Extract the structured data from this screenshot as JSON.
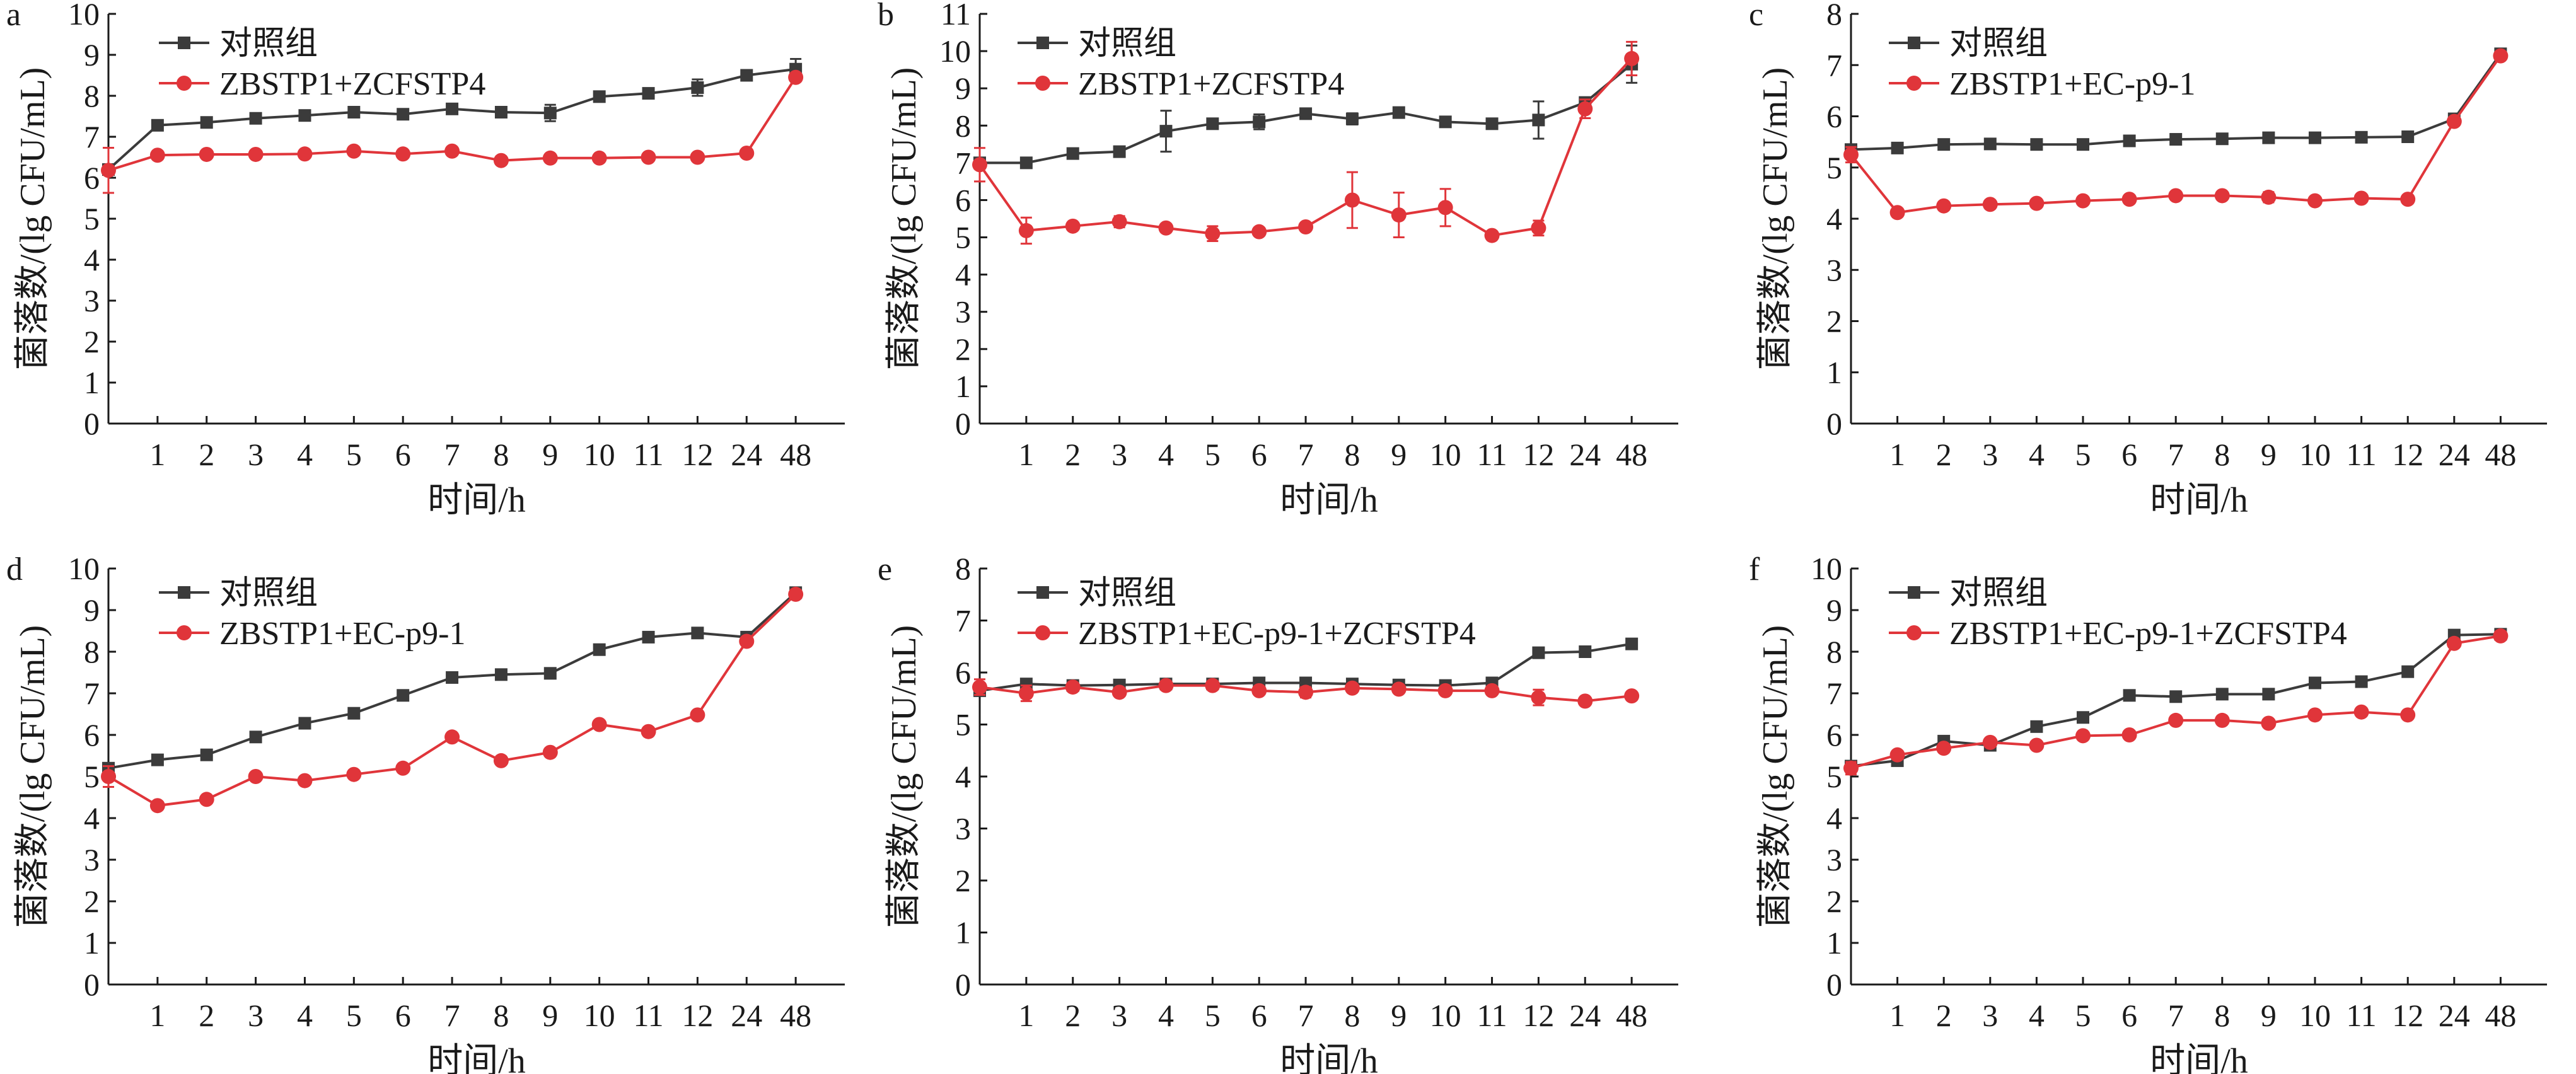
{
  "figure": {
    "x_axis_label": "时间/h",
    "y_axis_label": "菌落数/(lg CFU/mL)",
    "colors": {
      "control": "#3b3b3b",
      "treatment": "#e0353a",
      "axis": "#1a1a1a"
    },
    "control_legend": "对照组"
  },
  "chart_data": [
    {
      "panel": "a",
      "type": "line",
      "categories": [
        "0",
        "1",
        "2",
        "3",
        "4",
        "5",
        "6",
        "7",
        "8",
        "9",
        "10",
        "11",
        "12",
        "24",
        "48"
      ],
      "ylim": [
        0,
        10
      ],
      "yticks": [
        0,
        1,
        2,
        3,
        4,
        5,
        6,
        7,
        8,
        9,
        10
      ],
      "xlabel": "时间/h",
      "ylabel": "菌落数/(lg CFU/mL)",
      "series": [
        {
          "name": "对照组",
          "marker": "square",
          "values": [
            6.2,
            7.28,
            7.35,
            7.45,
            7.52,
            7.6,
            7.55,
            7.68,
            7.6,
            7.58,
            7.98,
            8.06,
            8.2,
            8.5,
            8.65
          ],
          "errors": [
            0.05,
            0.05,
            0.05,
            0.05,
            0.05,
            0.05,
            0.05,
            0.05,
            0.05,
            0.2,
            0.05,
            0.05,
            0.2,
            0.05,
            0.25
          ]
        },
        {
          "name": "ZBSTP1+ZCFSTP4",
          "marker": "circle",
          "values": [
            6.18,
            6.55,
            6.57,
            6.57,
            6.58,
            6.65,
            6.58,
            6.65,
            6.42,
            6.48,
            6.48,
            6.5,
            6.5,
            6.6,
            8.45
          ],
          "errors": [
            0.55,
            0.05,
            0.05,
            0.05,
            0.05,
            0.05,
            0.05,
            0.05,
            0.05,
            0.05,
            0.05,
            0.05,
            0.05,
            0.05,
            0.1
          ]
        }
      ]
    },
    {
      "panel": "b",
      "type": "line",
      "categories": [
        "0",
        "1",
        "2",
        "3",
        "4",
        "5",
        "6",
        "7",
        "8",
        "9",
        "10",
        "11",
        "12",
        "24",
        "48"
      ],
      "ylim": [
        0,
        11
      ],
      "yticks": [
        0,
        1,
        2,
        3,
        4,
        5,
        6,
        7,
        8,
        9,
        10,
        11
      ],
      "xlabel": "时间/h",
      "ylabel": "菌落数/(lg CFU/mL)",
      "series": [
        {
          "name": "对照组",
          "marker": "square",
          "values": [
            7.0,
            7.0,
            7.25,
            7.3,
            7.85,
            8.05,
            8.1,
            8.32,
            8.18,
            8.35,
            8.1,
            8.05,
            8.15,
            8.62,
            9.65
          ],
          "errors": [
            0.05,
            0.05,
            0.05,
            0.1,
            0.55,
            0.1,
            0.2,
            0.05,
            0.15,
            0.05,
            0.05,
            0.05,
            0.5,
            0.05,
            0.5
          ]
        },
        {
          "name": "ZBSTP1+ZCFSTP4",
          "marker": "circle",
          "values": [
            6.95,
            5.18,
            5.3,
            5.42,
            5.25,
            5.1,
            5.15,
            5.28,
            6.0,
            5.6,
            5.8,
            5.05,
            5.25,
            8.45,
            9.8
          ],
          "errors": [
            0.45,
            0.35,
            0.05,
            0.15,
            0.05,
            0.2,
            0.1,
            0.05,
            0.75,
            0.6,
            0.5,
            0.05,
            0.2,
            0.25,
            0.45
          ]
        }
      ]
    },
    {
      "panel": "c",
      "type": "line",
      "categories": [
        "0",
        "1",
        "2",
        "3",
        "4",
        "5",
        "6",
        "7",
        "8",
        "9",
        "10",
        "11",
        "12",
        "24",
        "48"
      ],
      "ylim": [
        0,
        8
      ],
      "yticks": [
        0,
        1,
        2,
        3,
        4,
        5,
        6,
        7,
        8
      ],
      "xlabel": "时间/h",
      "ylabel": "菌落数/(lg CFU/mL)",
      "series": [
        {
          "name": "对照组",
          "marker": "square",
          "values": [
            5.35,
            5.38,
            5.45,
            5.46,
            5.45,
            5.45,
            5.52,
            5.55,
            5.56,
            5.58,
            5.58,
            5.59,
            5.6,
            5.95,
            7.22
          ],
          "errors": [
            0.05,
            0.05,
            0.05,
            0.05,
            0.05,
            0.05,
            0.05,
            0.05,
            0.05,
            0.05,
            0.05,
            0.05,
            0.05,
            0.05,
            0.05
          ]
        },
        {
          "name": "ZBSTP1+EC-p9-1",
          "marker": "circle",
          "values": [
            5.25,
            4.12,
            4.25,
            4.28,
            4.3,
            4.35,
            4.38,
            4.45,
            4.45,
            4.42,
            4.35,
            4.4,
            4.38,
            5.9,
            7.18
          ],
          "errors": [
            0.15,
            0.05,
            0.05,
            0.05,
            0.05,
            0.05,
            0.05,
            0.05,
            0.05,
            0.1,
            0.05,
            0.05,
            0.05,
            0.05,
            0.05
          ]
        }
      ]
    },
    {
      "panel": "d",
      "type": "line",
      "categories": [
        "0",
        "1",
        "2",
        "3",
        "4",
        "5",
        "6",
        "7",
        "8",
        "9",
        "10",
        "11",
        "12",
        "24",
        "48"
      ],
      "ylim": [
        0,
        10
      ],
      "yticks": [
        0,
        1,
        2,
        3,
        4,
        5,
        6,
        7,
        8,
        9,
        10
      ],
      "xlabel": "时间/h",
      "ylabel": "菌落数/(lg CFU/mL)",
      "series": [
        {
          "name": "对照组",
          "marker": "square",
          "values": [
            5.2,
            5.4,
            5.52,
            5.95,
            6.28,
            6.52,
            6.95,
            7.38,
            7.45,
            7.48,
            8.05,
            8.35,
            8.45,
            8.35,
            9.42
          ],
          "errors": [
            0.05,
            0.05,
            0.05,
            0.05,
            0.05,
            0.05,
            0.05,
            0.05,
            0.05,
            0.05,
            0.05,
            0.05,
            0.05,
            0.05,
            0.1
          ]
        },
        {
          "name": "ZBSTP1+EC-p9-1",
          "marker": "circle",
          "values": [
            5.0,
            4.3,
            4.45,
            5.0,
            4.9,
            5.05,
            5.2,
            5.95,
            5.38,
            5.58,
            6.25,
            6.08,
            6.48,
            8.25,
            9.38
          ],
          "errors": [
            0.25,
            0.05,
            0.05,
            0.05,
            0.05,
            0.05,
            0.05,
            0.05,
            0.05,
            0.05,
            0.05,
            0.05,
            0.05,
            0.05,
            0.05
          ]
        }
      ]
    },
    {
      "panel": "e",
      "type": "line",
      "categories": [
        "0",
        "1",
        "2",
        "3",
        "4",
        "5",
        "6",
        "7",
        "8",
        "9",
        "10",
        "11",
        "12",
        "24",
        "48"
      ],
      "ylim": [
        0,
        8
      ],
      "yticks": [
        0,
        1,
        2,
        3,
        4,
        5,
        6,
        7,
        8
      ],
      "xlabel": "时间/h",
      "ylabel": "菌落数/(lg CFU/mL)",
      "series": [
        {
          "name": "对照组",
          "marker": "square",
          "values": [
            5.65,
            5.78,
            5.75,
            5.76,
            5.78,
            5.78,
            5.8,
            5.8,
            5.78,
            5.76,
            5.75,
            5.8,
            6.38,
            6.4,
            6.55
          ],
          "errors": [
            0.05,
            0.05,
            0.05,
            0.05,
            0.05,
            0.05,
            0.05,
            0.05,
            0.05,
            0.05,
            0.05,
            0.05,
            0.05,
            0.05,
            0.05
          ]
        },
        {
          "name": "ZBSTP1+EC-p9-1+ZCFSTP4",
          "marker": "circle",
          "values": [
            5.72,
            5.6,
            5.72,
            5.62,
            5.75,
            5.75,
            5.65,
            5.62,
            5.7,
            5.68,
            5.65,
            5.65,
            5.52,
            5.45,
            5.55
          ],
          "errors": [
            0.15,
            0.15,
            0.05,
            0.05,
            0.05,
            0.05,
            0.05,
            0.1,
            0.05,
            0.05,
            0.05,
            0.05,
            0.15,
            0.05,
            0.05
          ]
        }
      ]
    },
    {
      "panel": "f",
      "type": "line",
      "categories": [
        "0",
        "1",
        "2",
        "3",
        "4",
        "5",
        "6",
        "7",
        "8",
        "9",
        "10",
        "11",
        "12",
        "24",
        "48"
      ],
      "ylim": [
        0,
        10
      ],
      "yticks": [
        0,
        1,
        2,
        3,
        4,
        5,
        6,
        7,
        8,
        9,
        10
      ],
      "xlabel": "时间/h",
      "ylabel": "菌落数/(lg CFU/mL)",
      "series": [
        {
          "name": "对照组",
          "marker": "square",
          "values": [
            5.25,
            5.38,
            5.85,
            5.75,
            6.2,
            6.42,
            6.95,
            6.92,
            6.98,
            6.98,
            7.25,
            7.28,
            7.52,
            8.4,
            8.42
          ],
          "errors": [
            0.05,
            0.05,
            0.05,
            0.05,
            0.05,
            0.05,
            0.05,
            0.05,
            0.05,
            0.05,
            0.05,
            0.05,
            0.05,
            0.05,
            0.05
          ]
        },
        {
          "name": "ZBSTP1+EC-p9-1+ZCFSTP4",
          "marker": "circle",
          "values": [
            5.2,
            5.52,
            5.68,
            5.82,
            5.75,
            5.98,
            6.0,
            6.35,
            6.35,
            6.28,
            6.48,
            6.55,
            6.48,
            8.2,
            8.38
          ],
          "errors": [
            0.15,
            0.05,
            0.05,
            0.05,
            0.05,
            0.05,
            0.05,
            0.05,
            0.05,
            0.05,
            0.05,
            0.05,
            0.05,
            0.05,
            0.05
          ]
        }
      ]
    }
  ]
}
